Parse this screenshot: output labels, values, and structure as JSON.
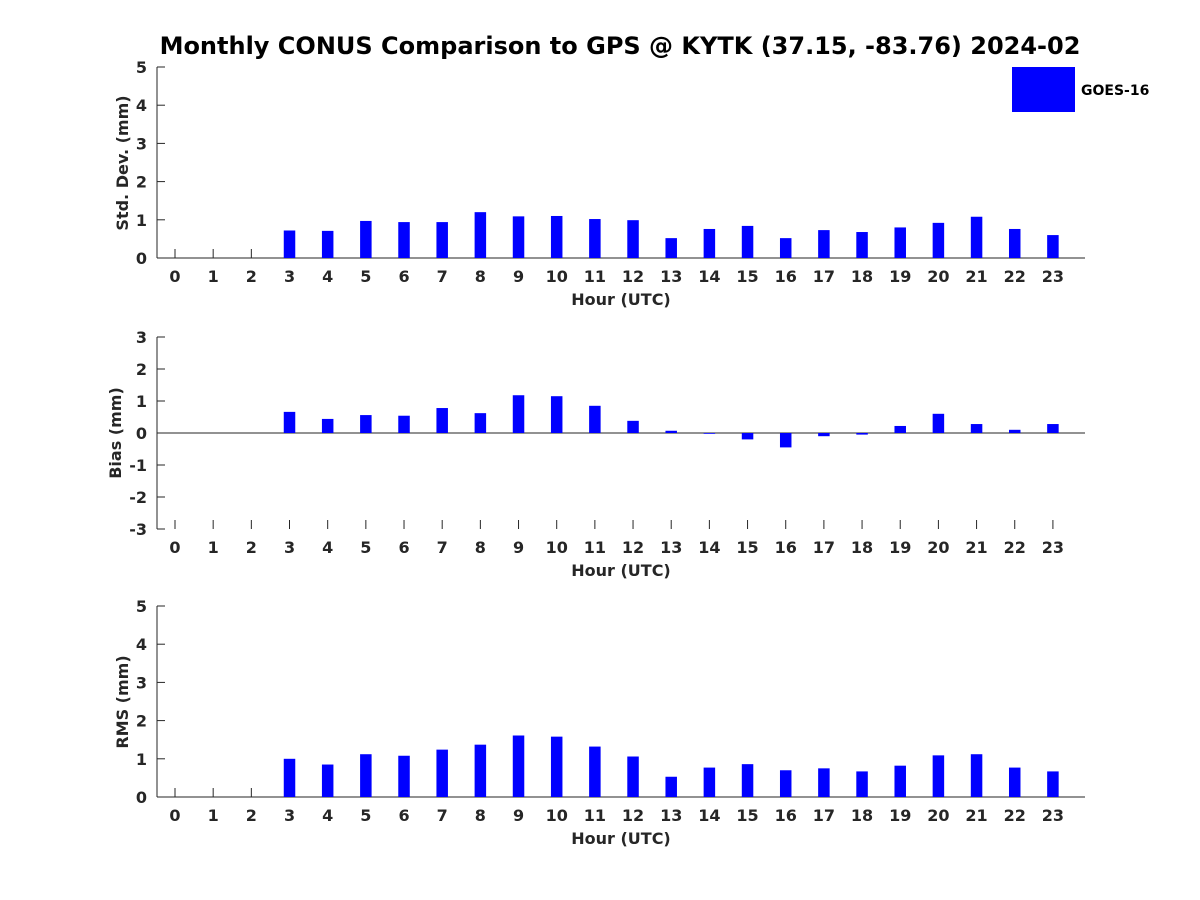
{
  "chart_data": {
    "type": "bar",
    "title": "Monthly CONUS Comparison to GPS @ KYTK (37.15, -83.76) 2024-02",
    "legend": {
      "placement": "top-right",
      "entries": [
        "GOES-16"
      ]
    },
    "series_color": "#0000ff",
    "categories": [
      "0",
      "1",
      "2",
      "3",
      "4",
      "5",
      "6",
      "7",
      "8",
      "9",
      "10",
      "11",
      "12",
      "13",
      "14",
      "15",
      "16",
      "17",
      "18",
      "19",
      "20",
      "21",
      "22",
      "23"
    ],
    "panels": [
      {
        "id": "std",
        "ylabel": "Std. Dev. (mm)",
        "xlabel": "Hour (UTC)",
        "ylim": [
          0,
          5
        ],
        "yticks": [
          "0",
          "1",
          "2",
          "3",
          "4",
          "5"
        ],
        "series": [
          {
            "name": "GOES-16",
            "values": [
              null,
              null,
              null,
              0.72,
              0.71,
              0.97,
              0.94,
              0.94,
              1.2,
              1.09,
              1.1,
              1.02,
              0.99,
              0.52,
              0.76,
              0.84,
              0.52,
              0.73,
              0.68,
              0.8,
              0.92,
              1.08,
              0.76,
              0.6
            ]
          }
        ]
      },
      {
        "id": "bias",
        "ylabel": "Bias (mm)",
        "xlabel": "Hour (UTC)",
        "ylim": [
          -3,
          3
        ],
        "yticks": [
          "-3",
          "-2",
          "-1",
          "0",
          "1",
          "2",
          "3"
        ],
        "series": [
          {
            "name": "GOES-16",
            "values": [
              null,
              null,
              null,
              0.66,
              0.44,
              0.56,
              0.54,
              0.78,
              0.62,
              1.18,
              1.15,
              0.85,
              0.38,
              0.07,
              0.0,
              -0.2,
              -0.45,
              -0.1,
              -0.05,
              0.22,
              0.6,
              0.28,
              0.1,
              0.28
            ]
          }
        ]
      },
      {
        "id": "rms",
        "ylabel": "RMS (mm)",
        "xlabel": "Hour (UTC)",
        "ylim": [
          0,
          5
        ],
        "yticks": [
          "0",
          "1",
          "2",
          "3",
          "4",
          "5"
        ],
        "series": [
          {
            "name": "GOES-16",
            "values": [
              null,
              null,
              null,
              1.0,
              0.85,
              1.12,
              1.08,
              1.24,
              1.37,
              1.61,
              1.58,
              1.32,
              1.06,
              0.53,
              0.77,
              0.86,
              0.7,
              0.75,
              0.67,
              0.82,
              1.09,
              1.12,
              0.77,
              0.67
            ]
          }
        ]
      }
    ]
  }
}
